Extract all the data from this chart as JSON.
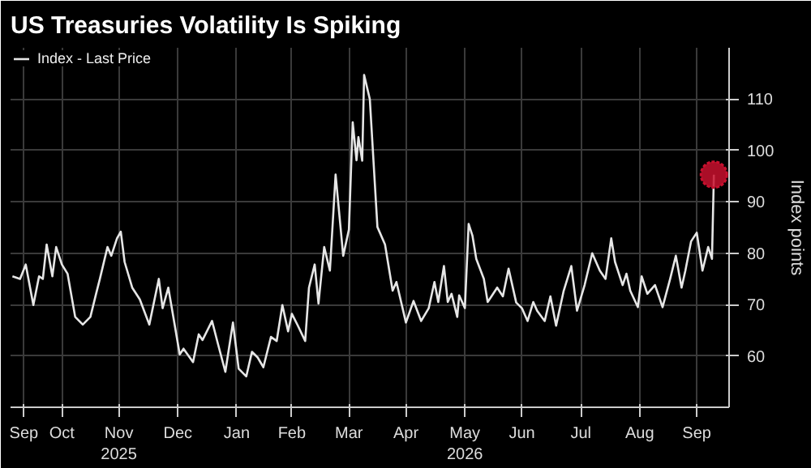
{
  "chart_data": {
    "type": "line",
    "title": "US Treasuries Volatility Is Spiking",
    "ylabel": "Index points",
    "xlim": [
      "2025-09-19",
      "2026-10-02"
    ],
    "ylim": [
      50,
      120
    ],
    "yticks": [
      60,
      70,
      80,
      90,
      100,
      110
    ],
    "xticks": [
      {
        "value": "2025-09-26",
        "label": "Sep"
      },
      {
        "value": "2025-10-16",
        "label": "Oct"
      },
      {
        "value": "2025-11-15",
        "label": "Nov\n2025"
      },
      {
        "value": "2025-12-16",
        "label": "Dec"
      },
      {
        "value": "2026-01-16",
        "label": "Jan"
      },
      {
        "value": "2026-02-14",
        "label": "Feb"
      },
      {
        "value": "2026-03-16",
        "label": "Mar"
      },
      {
        "value": "2026-04-15",
        "label": "Apr"
      },
      {
        "value": "2026-05-16",
        "label": "May\n2026"
      },
      {
        "value": "2026-06-15",
        "label": "Jun"
      },
      {
        "value": "2026-07-16",
        "label": "Jul"
      },
      {
        "value": "2026-08-16",
        "label": "Aug"
      },
      {
        "value": "2026-09-15",
        "label": "Sep"
      }
    ],
    "grid": true,
    "legend": "top left",
    "series": [
      {
        "name": "Index - Last Price",
        "color": "#e6e6e6",
        "x": [
          "2025-09-20",
          "2025-09-24",
          "2025-09-27",
          "2025-10-01",
          "2025-10-04",
          "2025-10-06",
          "2025-10-08",
          "2025-10-11",
          "2025-10-13",
          "2025-10-16",
          "2025-10-19",
          "2025-10-23",
          "2025-10-27",
          "2025-10-31",
          "2025-11-03",
          "2025-11-05",
          "2025-11-09",
          "2025-11-11",
          "2025-11-14",
          "2025-11-16",
          "2025-11-18",
          "2025-11-22",
          "2025-11-26",
          "2025-12-01",
          "2025-12-06",
          "2025-12-08",
          "2025-12-11",
          "2025-12-17",
          "2025-12-19",
          "2025-12-24",
          "2025-12-27",
          "2025-12-29",
          "2026-01-03",
          "2026-01-06",
          "2026-01-10",
          "2026-01-14",
          "2026-01-17",
          "2026-01-21",
          "2026-01-24",
          "2026-01-27",
          "2026-01-30",
          "2026-02-03",
          "2026-02-06",
          "2026-02-09",
          "2026-02-12",
          "2026-02-14",
          "2026-02-17",
          "2026-02-21",
          "2026-02-23",
          "2026-02-26",
          "2026-02-28",
          "2026-03-03",
          "2026-03-06",
          "2026-03-09",
          "2026-03-13",
          "2026-03-16",
          "2026-03-18",
          "2026-03-20",
          "2026-03-21",
          "2026-03-23",
          "2026-03-24",
          "2026-03-27",
          "2026-03-31",
          "2026-04-04",
          "2026-04-08",
          "2026-04-10",
          "2026-04-15",
          "2026-04-19",
          "2026-04-23",
          "2026-04-27",
          "2026-04-30",
          "2026-05-02",
          "2026-05-05",
          "2026-05-07",
          "2026-05-09",
          "2026-05-12",
          "2026-05-13",
          "2026-05-16",
          "2026-05-18",
          "2026-05-20",
          "2026-05-22",
          "2026-05-26",
          "2026-05-28",
          "2026-05-30",
          "2026-06-02",
          "2026-06-05",
          "2026-06-08",
          "2026-06-12",
          "2026-06-15",
          "2026-06-18",
          "2026-06-21",
          "2026-06-23",
          "2026-06-27",
          "2026-06-30",
          "2026-07-03",
          "2026-07-07",
          "2026-07-11",
          "2026-07-14",
          "2026-07-18",
          "2026-07-22",
          "2026-07-26",
          "2026-07-29",
          "2026-08-01",
          "2026-08-03",
          "2026-08-07",
          "2026-08-09",
          "2026-08-11",
          "2026-08-15",
          "2026-08-17",
          "2026-08-20",
          "2026-08-24",
          "2026-08-28",
          "2026-09-01",
          "2026-09-04",
          "2026-09-07",
          "2026-09-09",
          "2026-09-12",
          "2026-09-15",
          "2026-09-18",
          "2026-09-21",
          "2026-09-23",
          "2026-09-24"
        ],
        "values": [
          75.5,
          75,
          77.8,
          69.9,
          75.5,
          75,
          81.7,
          75.5,
          81.2,
          77.8,
          76,
          67.6,
          66.1,
          67.6,
          72.1,
          75,
          81.2,
          79.5,
          82.9,
          84.2,
          78.3,
          73.3,
          71,
          66.1,
          75,
          69.3,
          73.3,
          60.3,
          61.4,
          58.8,
          64.2,
          63.1,
          66.8,
          62.5,
          56.9,
          66.5,
          57.5,
          56,
          60.8,
          59.7,
          57.8,
          63.7,
          62.9,
          69.9,
          64.8,
          68.2,
          66,
          62.9,
          73.3,
          77.8,
          70.2,
          81.2,
          76.6,
          95.3,
          79.5,
          84.6,
          105.5,
          98.1,
          102.6,
          98,
          114.7,
          110,
          85.1,
          81.7,
          72.7,
          74.4,
          66.5,
          70.7,
          66.8,
          69.3,
          74.4,
          70.5,
          77.5,
          70.5,
          72.1,
          67.6,
          71.8,
          69.3,
          85.7,
          83.4,
          78.9,
          75,
          70.5,
          71.6,
          73.3,
          71.6,
          77,
          70.4,
          69.3,
          66.8,
          70.5,
          68.8,
          66.8,
          71.6,
          65.9,
          72.7,
          77.5,
          68.8,
          73.8,
          80,
          76.6,
          75,
          82.9,
          78.3,
          73.8,
          76,
          72.7,
          69.5,
          75.5,
          72.1,
          73.8,
          69.5,
          75,
          79.5,
          73.3,
          76.6,
          82.3,
          84,
          76.6,
          81.2,
          78.9,
          95.3
        ]
      },
      {
        "type": "scatter",
        "marker": "circle",
        "color": "#c8102e",
        "x": [
          "2026-09-24"
        ],
        "values": [
          95.3
        ]
      }
    ]
  }
}
